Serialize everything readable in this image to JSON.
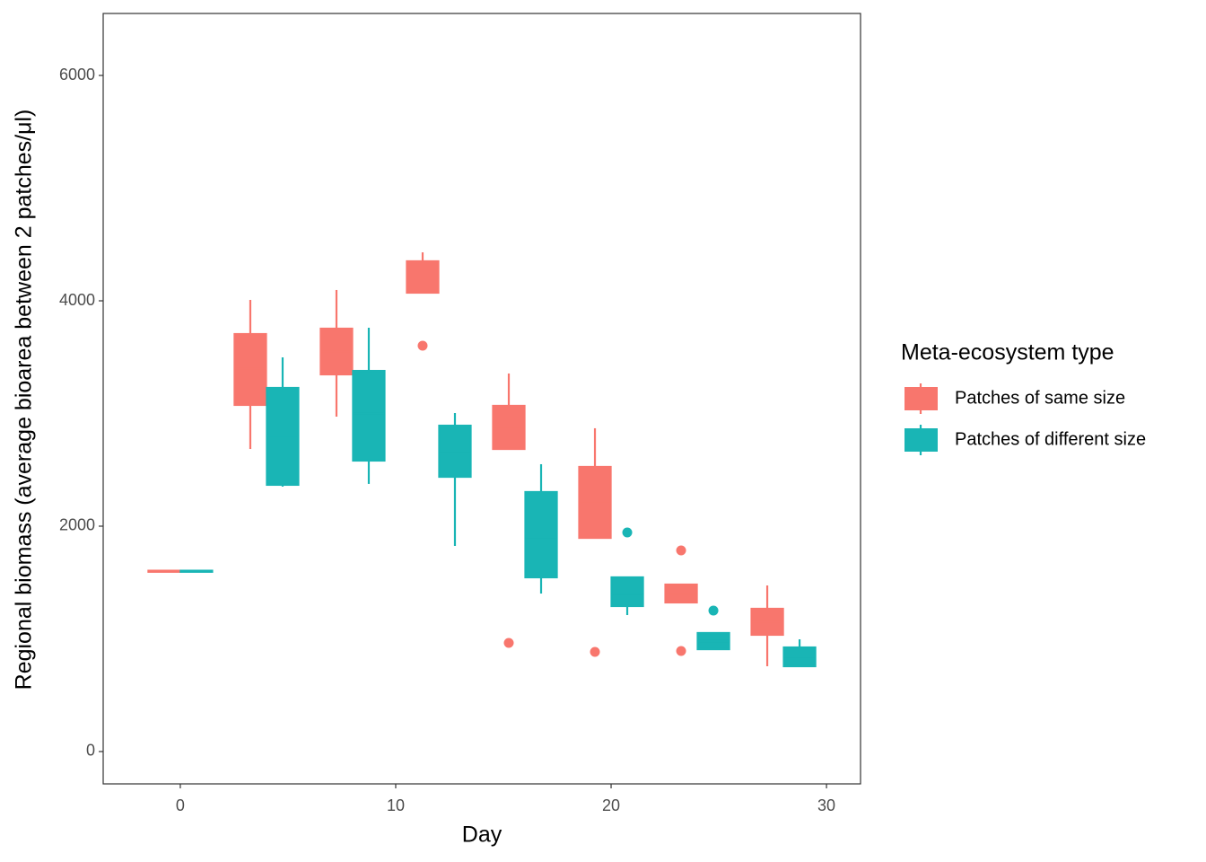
{
  "chart_data": {
    "type": "boxplot",
    "xlabel": "Day",
    "ylabel": "Regional biomass (average bioarea between 2 patches/μl)",
    "legend_title": "Meta-ecosystem type",
    "x": [
      0,
      4,
      8,
      12,
      16,
      20,
      24,
      28
    ],
    "xlim": [
      -3.58,
      31.58
    ],
    "xticks": [
      0,
      10,
      20,
      30
    ],
    "ylim": [
      -287,
      6550
    ],
    "yticks": [
      0,
      2000,
      4000,
      6000
    ],
    "grid": false,
    "legend_position": "right",
    "series": [
      {
        "name": "Patches of same size",
        "color": "#f8766d",
        "min": [
          1595,
          2685,
          2972,
          4072,
          2685,
          1896,
          1323,
          757
        ],
        "q1": [
          1595,
          3076,
          3347,
          4072,
          2685,
          1896,
          1323,
          1036
        ],
        "median": [
          1600,
          3400,
          3550,
          4200,
          2880,
          2200,
          1400,
          1150
        ],
        "q3": [
          1605,
          3705,
          3753,
          4351,
          3068,
          2526,
          1482,
          1267
        ],
        "max": [
          1605,
          4008,
          4096,
          4430,
          3355,
          2869,
          1482,
          1474
        ],
        "outliers": [
          [],
          [],
          [],
          [
            3602
          ],
          [
            964
          ],
          [
            884
          ],
          [
            1785,
            892
          ],
          []
        ]
      },
      {
        "name": "Patches of different size",
        "color": "#19b5b5",
        "min": [
          1595,
          2351,
          2375,
          1825,
          1402,
          1211,
          908,
          757
        ],
        "q1": [
          1595,
          2367,
          2582,
          2438,
          1546,
          1291,
          908,
          757
        ],
        "median": [
          1600,
          2800,
          3000,
          2650,
          1900,
          1400,
          980,
          840
        ],
        "q3": [
          1605,
          3227,
          3378,
          2892,
          2303,
          1546,
          1052,
          924
        ],
        "max": [
          1605,
          3498,
          3761,
          3004,
          2550,
          1546,
          1052,
          996
        ],
        "outliers": [
          [],
          [],
          [],
          [],
          [],
          [
            1944
          ],
          [
            1251
          ],
          []
        ]
      }
    ]
  }
}
